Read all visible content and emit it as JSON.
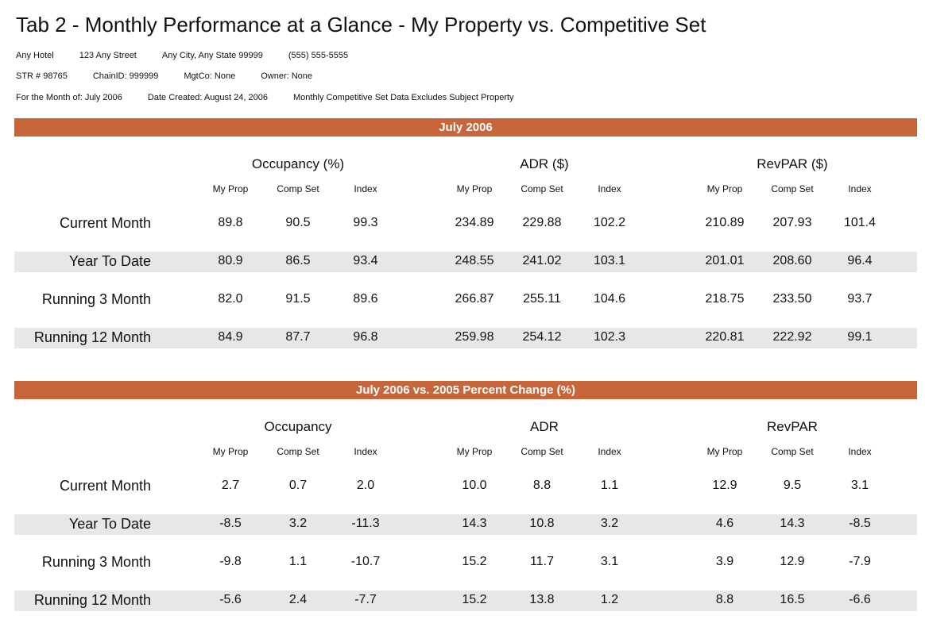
{
  "title": "Tab 2 - Monthly Performance at a Glance - My Property vs. Competitive Set",
  "info_lines": [
    [
      "Any Hotel",
      "123 Any Street",
      "Any City, Any State  99999",
      "(555) 555-5555"
    ],
    [
      "STR # 98765",
      "ChainID: 999999",
      "MgtCo: None",
      "Owner: None"
    ],
    [
      "For the Month of: July 2006",
      "Date Created: August 24, 2006",
      "Monthly Competitive Set Data Excludes Subject Property"
    ]
  ],
  "sections": [
    {
      "banner": "July 2006",
      "groups": [
        {
          "name": "Occupancy (%)",
          "columns": [
            "My Prop",
            "Comp Set",
            "Index"
          ]
        },
        {
          "name": "ADR ($)",
          "columns": [
            "My Prop",
            "Comp Set",
            "Index"
          ]
        },
        {
          "name": "RevPAR ($)",
          "columns": [
            "My Prop",
            "Comp Set",
            "Index"
          ]
        }
      ],
      "rows": [
        {
          "label": "Current Month",
          "values": [
            "89.8",
            "90.5",
            "99.3",
            "234.89",
            "229.88",
            "102.2",
            "210.89",
            "207.93",
            "101.4"
          ]
        },
        {
          "label": "Year To Date",
          "values": [
            "80.9",
            "86.5",
            "93.4",
            "248.55",
            "241.02",
            "103.1",
            "201.01",
            "208.60",
            "96.4"
          ]
        },
        {
          "label": "Running 3 Month",
          "values": [
            "82.0",
            "91.5",
            "89.6",
            "266.87",
            "255.11",
            "104.6",
            "218.75",
            "233.50",
            "93.7"
          ]
        },
        {
          "label": "Running 12 Month",
          "values": [
            "84.9",
            "87.7",
            "96.8",
            "259.98",
            "254.12",
            "102.3",
            "220.81",
            "222.92",
            "99.1"
          ]
        }
      ]
    },
    {
      "banner": "July 2006 vs. 2005 Percent Change (%)",
      "groups": [
        {
          "name": "Occupancy",
          "columns": [
            "My Prop",
            "Comp Set",
            "Index"
          ]
        },
        {
          "name": "ADR",
          "columns": [
            "My Prop",
            "Comp Set",
            "Index"
          ]
        },
        {
          "name": "RevPAR",
          "columns": [
            "My Prop",
            "Comp Set",
            "Index"
          ]
        }
      ],
      "rows": [
        {
          "label": "Current Month",
          "values": [
            "2.7",
            "0.7",
            "2.0",
            "10.0",
            "8.8",
            "1.1",
            "12.9",
            "9.5",
            "3.1"
          ]
        },
        {
          "label": "Year To Date",
          "values": [
            "-8.5",
            "3.2",
            "-11.3",
            "14.3",
            "10.8",
            "3.2",
            "4.6",
            "14.3",
            "-8.5"
          ]
        },
        {
          "label": "Running 3 Month",
          "values": [
            "-9.8",
            "1.1",
            "-10.7",
            "15.2",
            "11.7",
            "3.1",
            "3.9",
            "12.9",
            "-7.9"
          ]
        },
        {
          "label": "Running 12 Month",
          "values": [
            "-5.6",
            "2.4",
            "-7.7",
            "15.2",
            "13.8",
            "1.2",
            "8.8",
            "16.5",
            "-6.6"
          ]
        }
      ]
    }
  ]
}
